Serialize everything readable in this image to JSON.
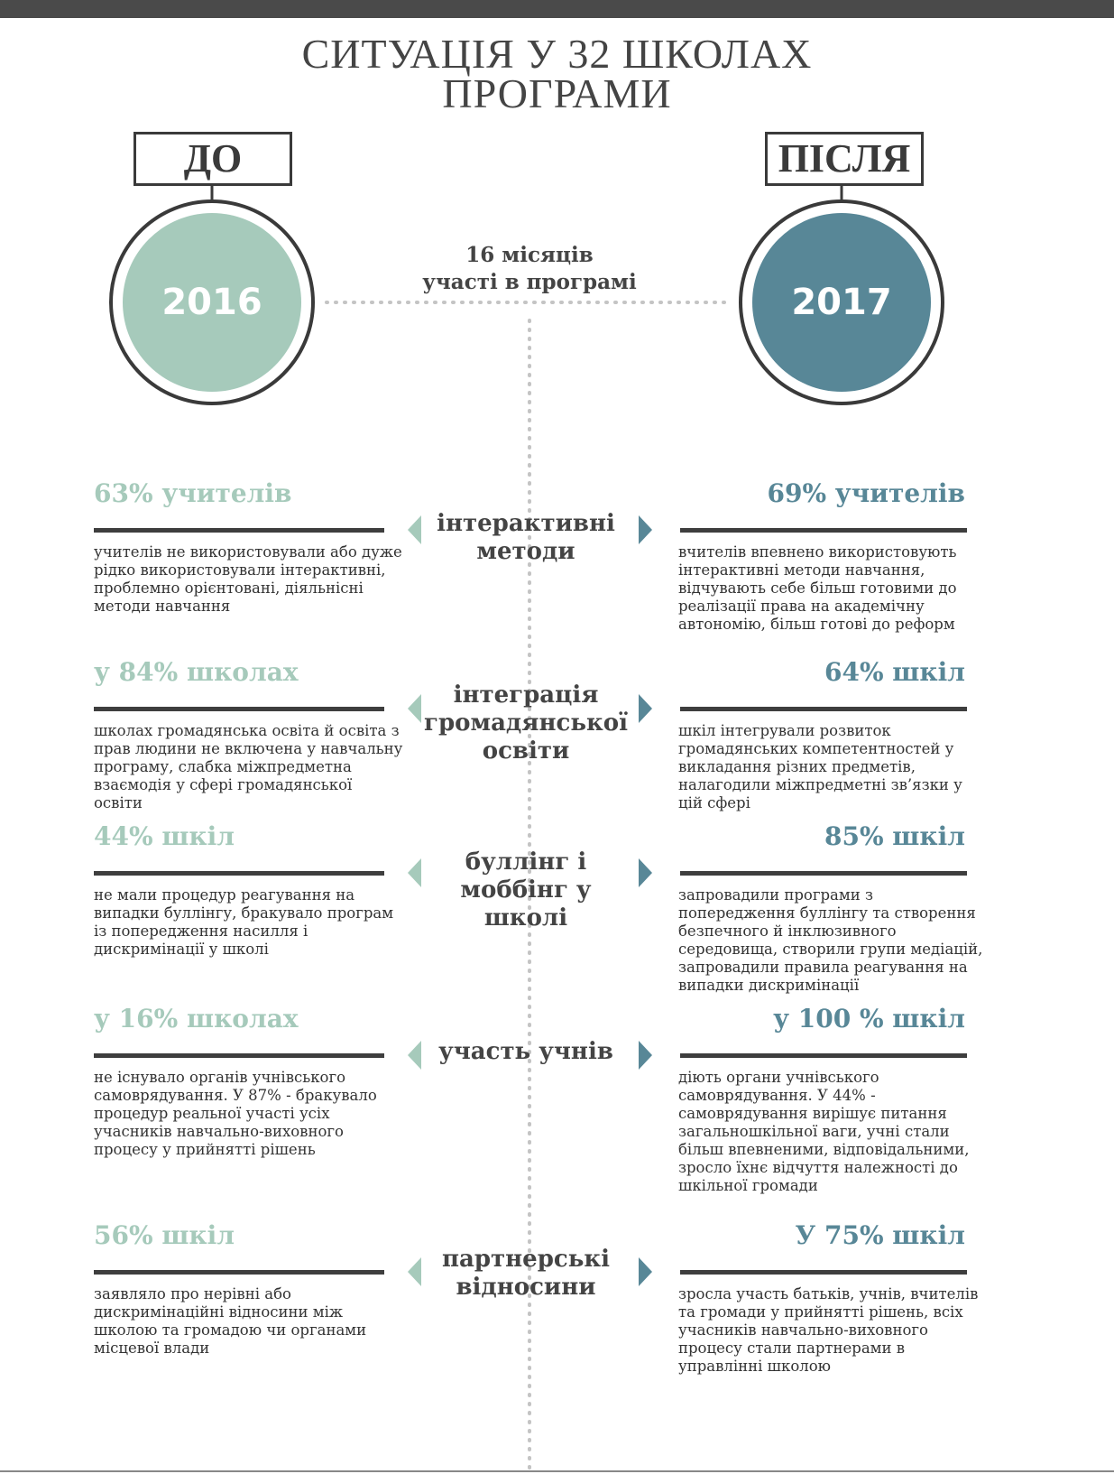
{
  "header": {
    "title": "СИТУАЦІЯ У 32 ШКОЛАХ ПРОГРАМИ"
  },
  "before": {
    "label": "ДО",
    "year": "2016"
  },
  "after": {
    "label": "ПІСЛЯ",
    "year": "2017"
  },
  "duration": {
    "line1": "16 місяців",
    "line2": "участі в програмі"
  },
  "rows": [
    {
      "topic": "інтерактивні методи",
      "left_headline": "63% учителів",
      "left_text": "учителів не використовували або дуже рідко використовували інтерактивні, проблемно орієнтовані, діяльнісні методи навчання",
      "right_headline": "69% учителів",
      "right_text": "вчителів впевнено використовують інтерактивні методи навчання, відчувають себе більш готовими до реалізації права на академічну автономію, більш готові до реформ"
    },
    {
      "topic": "інтеграція громадянської освіти",
      "left_headline": "у 84% школах",
      "left_text": "школах громадянська освіта й освіта з прав людини не включена у навчальну програму, слабка міжпредметна взаємодія у сфері громадянської освіти",
      "right_headline": "64% шкіл",
      "right_text": "шкіл інтегрували розвиток громадянських компетентностей у викладання різних предметів, налагодили міжпредметні зв’язки у цій сфері"
    },
    {
      "topic": "буллінг і моббінг у школі",
      "left_headline": "44% шкіл",
      "left_text": "не мали процедур реагування на випадки буллінгу, бракувало програм із попередження насилля і дискримінації у школі",
      "right_headline": "85% шкіл",
      "right_text": "запровадили програми з попередження буллінгу та створення безпечного й інклюзивного середовища, створили групи медіацій, запровадили правила реагування на випадки дискримінації"
    },
    {
      "topic": "участь учнів",
      "left_headline": "у 16% школах",
      "left_text": "не існувало органів учнівського самоврядування. У 87% - бракувало процедур реальної участі усіх учасників навчально-виховного процесу у прийнятті рішень",
      "right_headline": "у 100 % шкіл",
      "right_text": "діють органи учнівського самоврядування. У 44% - самоврядування вирішує питання загальношкільної ваги, учні стали більш впевненими, відповідальними, зросло їхнє відчуття належності до шкільної громади"
    },
    {
      "topic": "партнерські відносини",
      "left_headline": "56% шкіл",
      "left_text": "заявляло про нерівні або дискримінаційні відносини між школою та громадою чи органами місцевої влади",
      "right_headline": "У 75% шкіл",
      "right_text": "зросла участь батьків, учнів, вчителів та громади у прийнятті рішень, всіх учасників навчально-виховного процесу стали партнерами в управлінні школою"
    }
  ]
}
